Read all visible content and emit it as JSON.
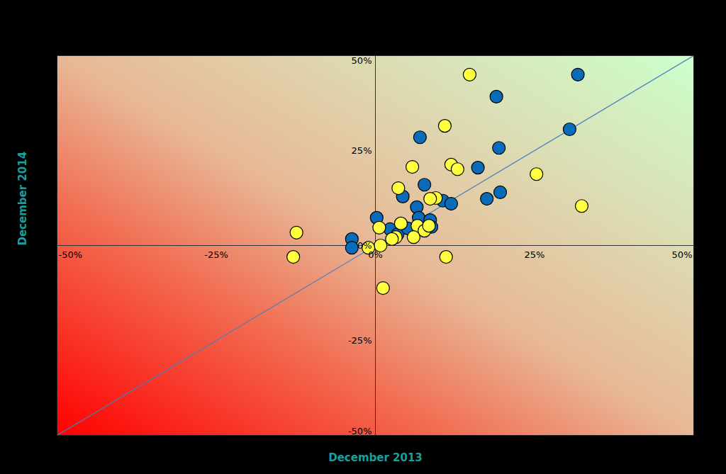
{
  "chart_data": {
    "type": "scatter",
    "x_label": "December 2013",
    "y_label": "December 2014",
    "xlim": [
      -50,
      50
    ],
    "ylim": [
      -50,
      50
    ],
    "xticks": [
      {
        "value": -50,
        "label": "-50%"
      },
      {
        "value": -25,
        "label": "-25%"
      },
      {
        "value": 0,
        "label": "0%"
      },
      {
        "value": 25,
        "label": "25%"
      },
      {
        "value": 50,
        "label": "50%"
      }
    ],
    "yticks": [
      {
        "value": -50,
        "label": "-50%"
      },
      {
        "value": -25,
        "label": "-25%"
      },
      {
        "value": 0,
        "label": "0%"
      },
      {
        "value": 25,
        "label": "25%"
      },
      {
        "value": 50,
        "label": "50%"
      }
    ],
    "grid": false,
    "series": [
      {
        "color": "#0a6cb8",
        "marker": "circle",
        "x": [
          31.8,
          19.0,
          30.5,
          7.0,
          19.4,
          16.1,
          7.7,
          19.6,
          17.5,
          4.3,
          10.6,
          11.9,
          6.5,
          0.2,
          6.8,
          8.6,
          8.8,
          2.3,
          -3.7,
          -3.7,
          3.5,
          5.1
        ],
        "y": [
          45.0,
          39.2,
          30.6,
          28.5,
          25.7,
          20.5,
          16.0,
          14.0,
          12.3,
          12.9,
          11.8,
          11.0,
          10.1,
          7.3,
          7.3,
          6.7,
          4.9,
          4.3,
          1.7,
          -0.6,
          3.0,
          4.5
        ]
      },
      {
        "color": "#ffff40",
        "marker": "circle",
        "x": [
          14.8,
          10.9,
          5.8,
          11.9,
          12.9,
          25.3,
          32.4,
          3.6,
          9.5,
          8.6,
          -12.4,
          -12.9,
          11.1,
          1.2,
          0.6,
          4.0,
          6.6,
          7.7,
          8.4,
          6.0,
          3.2,
          2.6,
          0.8,
          -1.1
        ],
        "y": [
          45.0,
          31.5,
          20.7,
          21.3,
          20.1,
          18.8,
          10.4,
          15.1,
          12.5,
          12.3,
          3.4,
          -3.0,
          -3.0,
          -11.2,
          4.7,
          5.8,
          5.2,
          3.9,
          5.2,
          2.2,
          2.2,
          1.7,
          0.0,
          -0.6
        ]
      }
    ]
  }
}
